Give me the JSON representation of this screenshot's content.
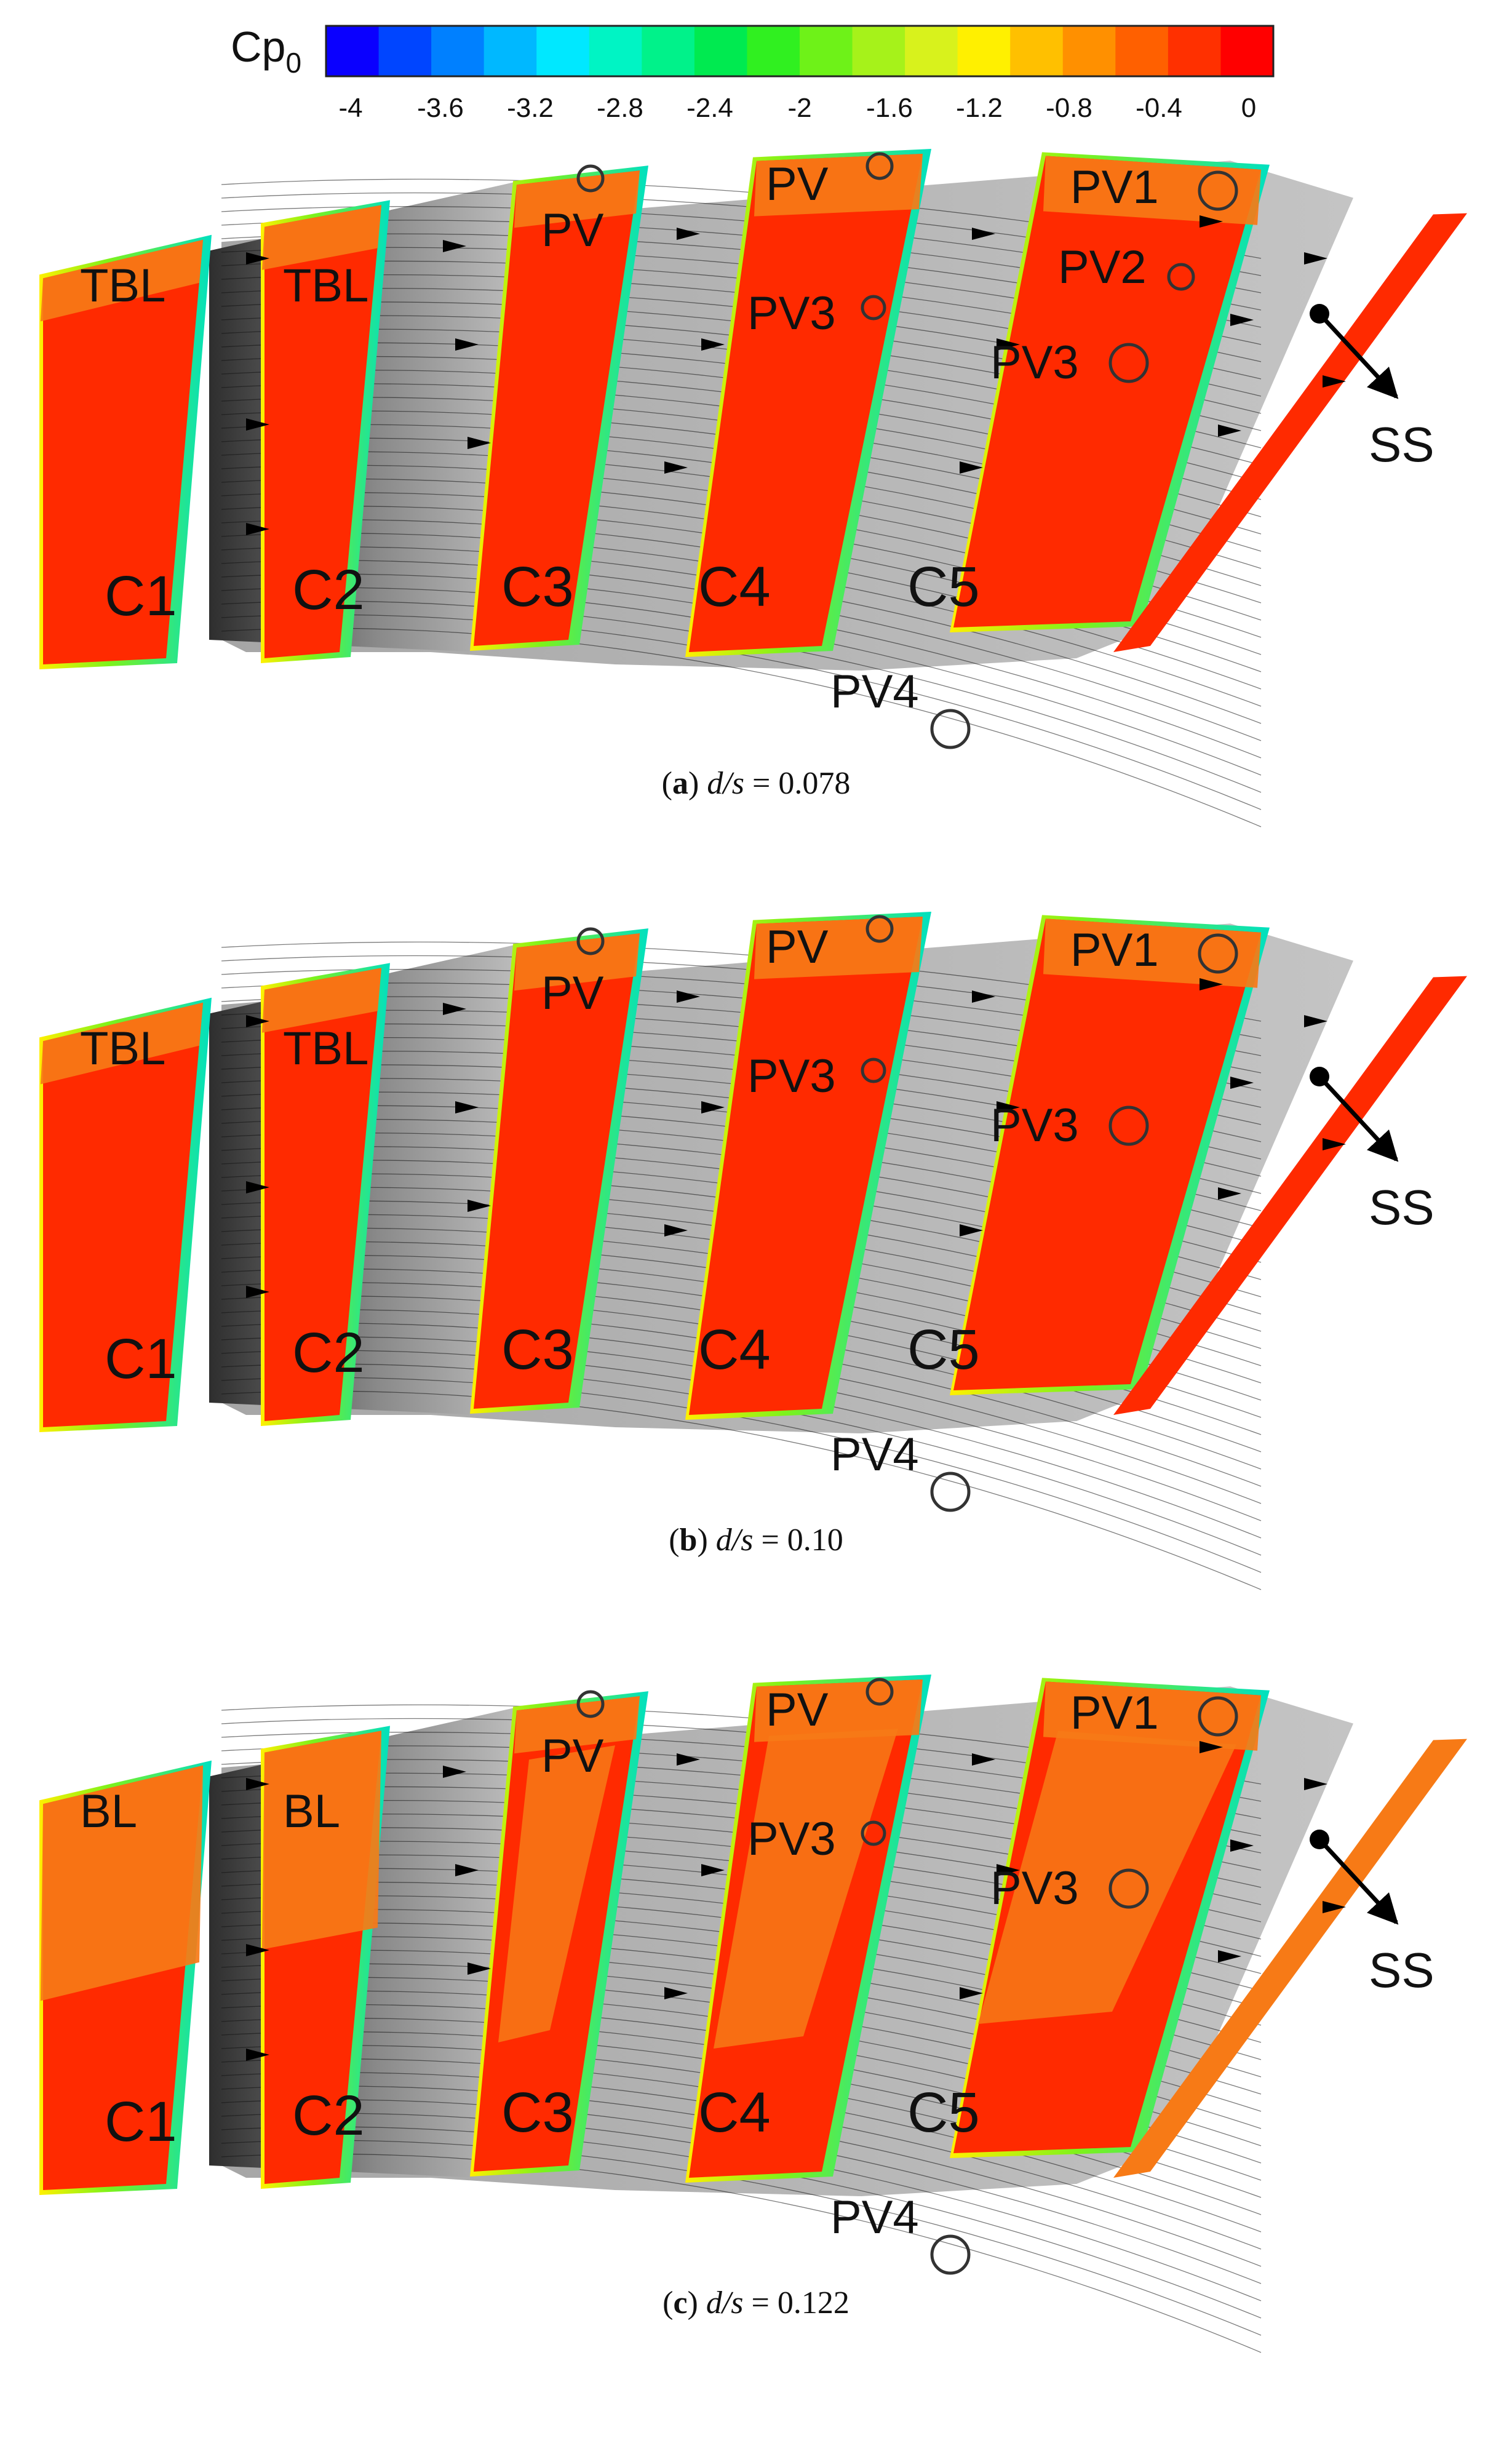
{
  "legend": {
    "title_main": "Cp",
    "title_sub": "0",
    "ticks": [
      "-4",
      "-3.6",
      "-3.2",
      "-2.8",
      "-2.4",
      "-2",
      "-1.6",
      "-1.2",
      "-0.8",
      "-0.4",
      "0"
    ],
    "colors": [
      "#0a00ff",
      "#0045ff",
      "#0080ff",
      "#00b8ff",
      "#00e8ff",
      "#00f4c4",
      "#00f28a",
      "#00ea50",
      "#30f020",
      "#6ef218",
      "#a6f21a",
      "#d8f21c",
      "#fff000",
      "#ffc000",
      "#ff9000",
      "#ff6000",
      "#ff3000",
      "#ff0000"
    ]
  },
  "colors": {
    "core": "#ff2a00",
    "loss": "#f77a16",
    "gray": "#b4b4b4",
    "dark": "#3a3a3a",
    "edge": "#c8f000"
  },
  "panels": [
    {
      "caption_letter": "a",
      "caption_var": "d/s",
      "caption_value": " = 0.078",
      "labels": {
        "C1": "C1",
        "C2": "C2",
        "C3": "C3",
        "C4": "C4",
        "C5": "C5",
        "b1": "TBL",
        "b2": "TBL",
        "pvC3": "PV",
        "pvC4": "PV",
        "pv3C4": "PV3",
        "pv1": "PV1",
        "pv2": "PV2",
        "pv3C5": "PV3",
        "pv4": "PV4",
        "ss": "SS"
      }
    },
    {
      "caption_letter": "b",
      "caption_var": "d/s",
      "caption_value": " = 0.10",
      "labels": {
        "C1": "C1",
        "C2": "C2",
        "C3": "C3",
        "C4": "C4",
        "C5": "C5",
        "b1": "TBL",
        "b2": "TBL",
        "pvC3": "PV",
        "pvC4": "PV",
        "pv3C4": "PV3",
        "pv1": "PV1",
        "pv3C5": "PV3",
        "pv4": "PV4",
        "ss": "SS"
      }
    },
    {
      "caption_letter": "c",
      "caption_var": "d/s",
      "caption_value": " = 0.122",
      "labels": {
        "C1": "C1",
        "C2": "C2",
        "C3": "C3",
        "C4": "C4",
        "C5": "C5",
        "b1": "BL",
        "b2": "BL",
        "pvC3": "PV",
        "pvC4": "PV",
        "pv3C4": "PV3",
        "pv1": "PV1",
        "pv3C5": "PV3",
        "pv4": "PV4",
        "ss": "SS"
      }
    }
  ]
}
